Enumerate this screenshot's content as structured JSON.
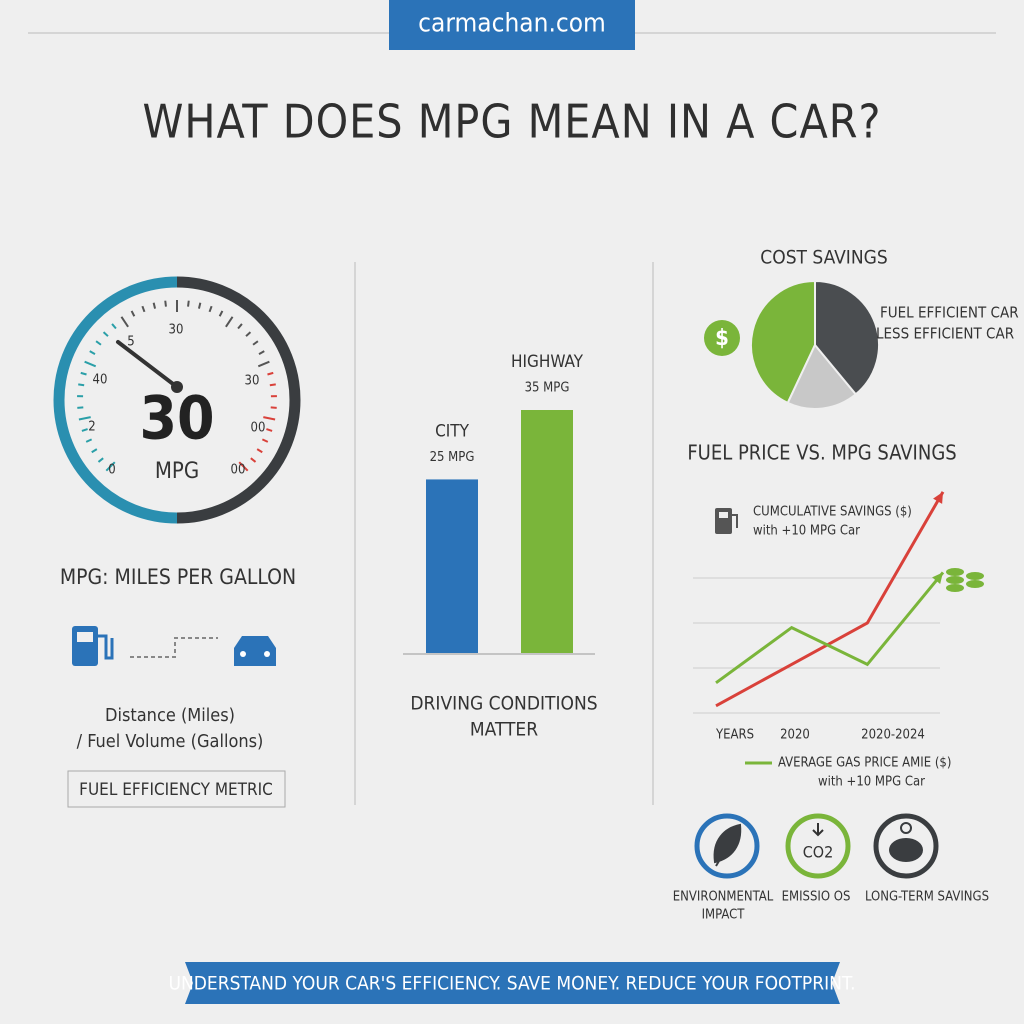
{
  "header": {
    "site": "carmachan.com",
    "title": "WHAT DOES MPG MEAN IN A CAR?"
  },
  "left": {
    "gauge": {
      "value": 30,
      "unit": "MPG",
      "tick_labels": [
        "5",
        "30",
        "40",
        "2",
        "0",
        "30",
        "00",
        "00"
      ]
    },
    "heading": "MPG: MILES PER GALLON",
    "formula": [
      "Distance (Miles)",
      "/ Fuel Volume (Gallons)"
    ],
    "badge": "FUEL EFFICIENCY METRIC"
  },
  "middle": {
    "bar_chart": {
      "type": "bar",
      "categories": [
        "CITY",
        "HIGHWAY"
      ],
      "values": [
        25,
        35
      ],
      "value_labels": [
        "25 MPG",
        "35 MPG"
      ],
      "colors": [
        "#2b73b8",
        "#7ab53a"
      ]
    },
    "caption": [
      "DRIVING CONDITIONS",
      "MATTER"
    ]
  },
  "right": {
    "pie_chart": {
      "type": "pie",
      "title": "COST SAVINGS",
      "slices": [
        {
          "name": "FUEL EFFICIENT CAR",
          "value": 43,
          "color": "#7ab53a"
        },
        {
          "name": null,
          "value": 18,
          "color": "#c8c8c8"
        },
        {
          "name": "LESS EFFICIENT CAR",
          "value": 39,
          "color": "#4a4d50"
        }
      ]
    },
    "line_chart": {
      "type": "line",
      "title": "FUEL PRICE VS. MPG SAVINGS",
      "categories": [
        "YEARS",
        "2020",
        null,
        "2020-2024"
      ],
      "series": [
        {
          "name": "CUMCULATIVE SAVINGS ($)",
          "note": "with +10 MPG Car",
          "color": "#d9413a",
          "values": [
            4,
            22,
            40,
            97
          ]
        },
        {
          "name": "AVERAGE GAS PRICE AMIE ($)",
          "note": "with +10 MPG Car",
          "color": "#7ab53a",
          "values": [
            14,
            38,
            22,
            62
          ]
        }
      ]
    },
    "icons": [
      {
        "label": [
          "ENVIRONMENTAL",
          "IMPACT"
        ]
      },
      {
        "label": [
          "EMISSIO OS"
        ],
        "symbol": "CO2"
      },
      {
        "label": [
          "LONG-TERM SAVINGS"
        ]
      }
    ]
  },
  "footer": {
    "banner": "UNDERSTAND YOUR CAR'S EFFICIENCY. SAVE MONEY. REDUCE YOUR FOOTPRINT."
  }
}
